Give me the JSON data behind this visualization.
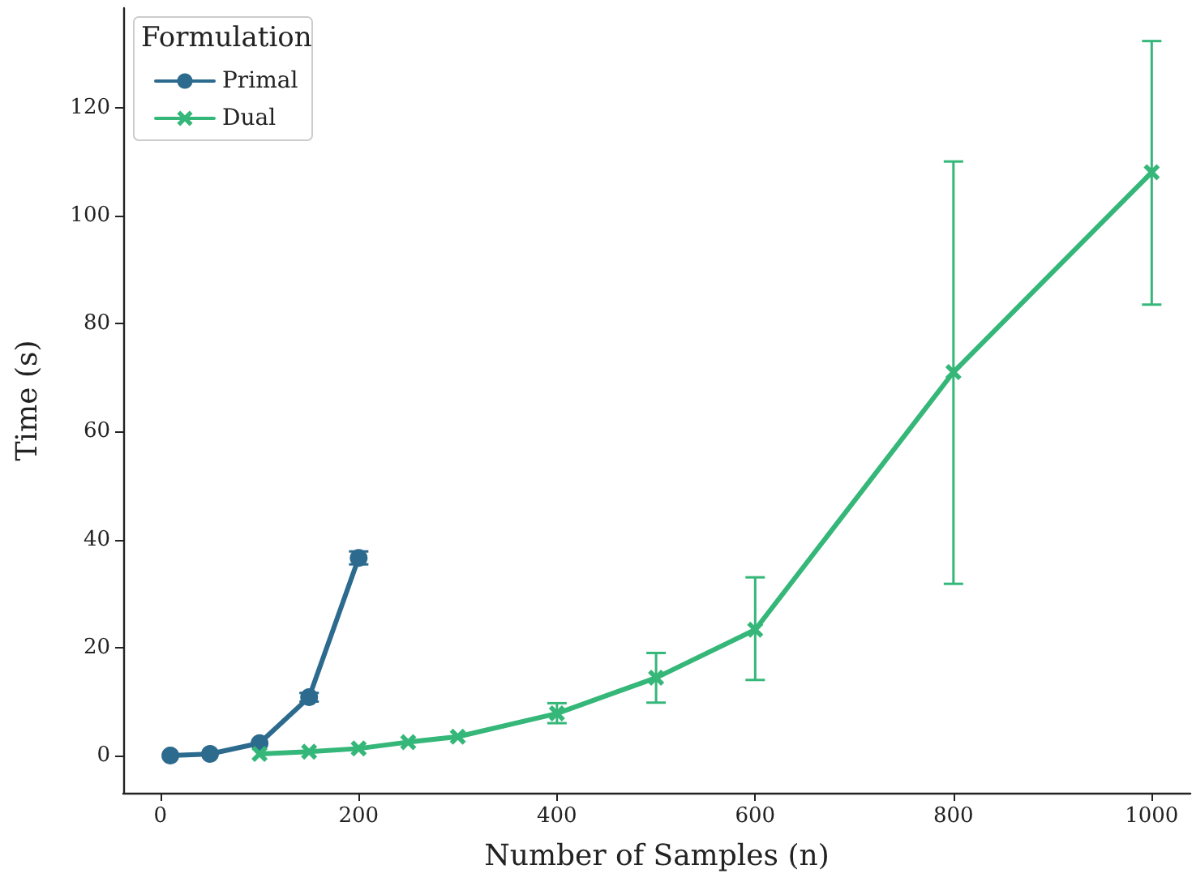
{
  "chart_data": {
    "type": "line",
    "xlabel": "Number of Samples (n)",
    "ylabel": "Time (s)",
    "legend_title": "Formulation",
    "legend": "top left",
    "grid": false,
    "line_style": "solid",
    "xlim": [
      -37.5,
      1039
    ],
    "xticks": [
      0,
      200,
      400,
      600,
      800,
      1000
    ],
    "ylim": [
      -6.9,
      138.4
    ],
    "yticks": [
      0,
      20,
      40,
      60,
      80,
      100,
      120
    ],
    "series": [
      {
        "name": "Primal",
        "color": "#2c6a8e",
        "marker": "circle",
        "x": [
          10,
          50,
          100,
          150,
          200
        ],
        "values": [
          0,
          0.3,
          2.3,
          10.8,
          36.6
        ],
        "errors": [
          null,
          null,
          null,
          0.8,
          1.2
        ]
      },
      {
        "name": "Dual",
        "color": "#35b779",
        "marker": "cross",
        "x": [
          100,
          150,
          200,
          250,
          300,
          400,
          500,
          600,
          800,
          1000
        ],
        "values": [
          0.3,
          0.7,
          1.3,
          2.5,
          3.5,
          7.8,
          14.4,
          23.3,
          71,
          108
        ],
        "errors": [
          null,
          null,
          null,
          null,
          null,
          [
            6,
            9.7
          ],
          [
            9.8,
            19
          ],
          [
            14,
            33
          ],
          [
            31.8,
            110
          ],
          [
            83.5,
            132.3
          ]
        ]
      }
    ]
  }
}
